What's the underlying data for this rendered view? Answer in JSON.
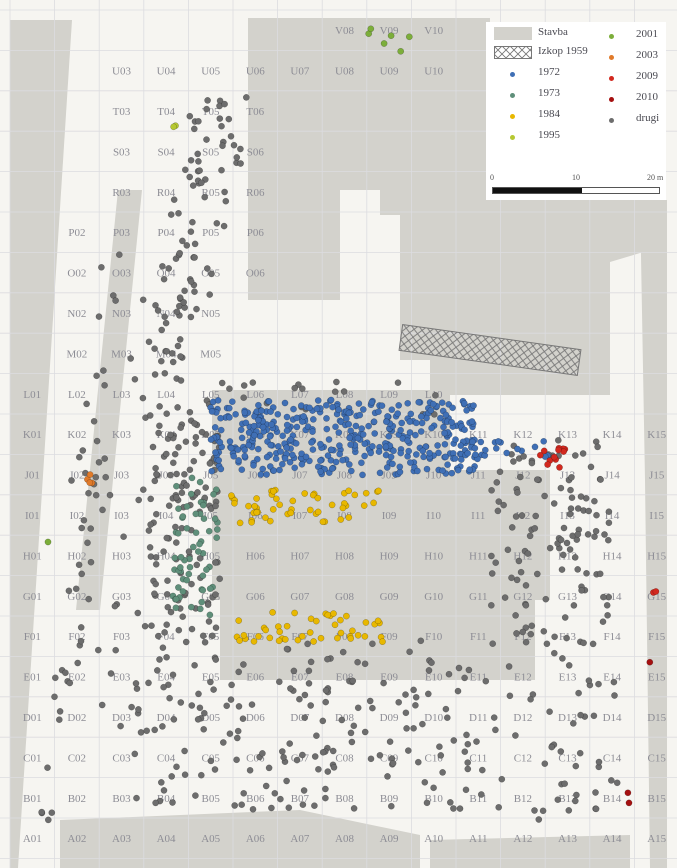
{
  "grid": {
    "rows": [
      "V",
      "U",
      "T",
      "S",
      "R",
      "P",
      "O",
      "N",
      "M",
      "L",
      "K",
      "J",
      "I",
      "H",
      "G",
      "F",
      "E",
      "D",
      "C",
      "B",
      "A"
    ],
    "cols": [
      "01",
      "02",
      "03",
      "04",
      "05",
      "06",
      "07",
      "08",
      "09",
      "10",
      "11",
      "12",
      "13",
      "14",
      "15"
    ],
    "labels": [
      [
        "V08",
        "V09",
        "V10"
      ],
      [
        "U03",
        "U04",
        "U05",
        "U06",
        "U07",
        "U08",
        "U09",
        "U10"
      ],
      [
        "T03",
        "T04",
        "T05",
        "T06"
      ],
      [
        "S03",
        "S04",
        "S05",
        "S06"
      ],
      [
        "R03",
        "R04",
        "R05",
        "R06"
      ],
      [
        "P02",
        "P03",
        "P04",
        "P05",
        "P06"
      ],
      [
        "O02",
        "O03",
        "O04",
        "O05",
        "O06"
      ],
      [
        "N02",
        "N03",
        "N04",
        "N05"
      ],
      [
        "M02",
        "M03",
        "M04",
        "M05"
      ],
      [
        "L01",
        "L02",
        "L03",
        "L04",
        "L05",
        "L06",
        "L07",
        "L08",
        "L09",
        "L10"
      ],
      [
        "K01",
        "K02",
        "K03",
        "K04",
        "K05",
        "K06",
        "K07",
        "K08",
        "K09",
        "K10",
        "K11",
        "K12",
        "K13",
        "K14",
        "K15"
      ],
      [
        "J01",
        "J02",
        "J03",
        "J04",
        "J05",
        "J06",
        "J07",
        "J08",
        "J09",
        "J10",
        "J11",
        "J12",
        "J13",
        "J14",
        "J15"
      ],
      [
        "I01",
        "I02",
        "I03",
        "I04",
        "I05",
        "I06",
        "I07",
        "I08",
        "I09",
        "I10",
        "I11",
        "I12",
        "I13",
        "I14",
        "I15"
      ],
      [
        "H01",
        "H02",
        "H03",
        "H04",
        "H05",
        "H06",
        "H07",
        "H08",
        "H09",
        "H10",
        "H11",
        "H12",
        "H13",
        "H14",
        "H15"
      ],
      [
        "G01",
        "G02",
        "G03",
        "G04",
        "G05",
        "G06",
        "G07",
        "G08",
        "G09",
        "G10",
        "G11",
        "G12",
        "G13",
        "G14",
        "G15"
      ],
      [
        "F01",
        "F02",
        "F03",
        "F04",
        "F05",
        "F06",
        "F07",
        "F08",
        "F09",
        "F10",
        "F11",
        "F12",
        "F13",
        "F14",
        "F15"
      ],
      [
        "E01",
        "E02",
        "E03",
        "E04",
        "E05",
        "E06",
        "E07",
        "E08",
        "E09",
        "E10",
        "E11",
        "E12",
        "E13",
        "E14",
        "E15"
      ],
      [
        "D01",
        "D02",
        "D03",
        "D04",
        "D05",
        "D06",
        "D07",
        "D08",
        "D09",
        "D10",
        "D11",
        "D12",
        "D13",
        "D14",
        "D15"
      ],
      [
        "C01",
        "C02",
        "C03",
        "C04",
        "C05",
        "C06",
        "C07",
        "C08",
        "C09",
        "C10",
        "C11",
        "C12",
        "C13",
        "C14",
        "C15"
      ],
      [
        "B01",
        "B02",
        "B03",
        "B04",
        "B05",
        "B06",
        "B07",
        "B08",
        "B09",
        "B10",
        "B11",
        "B12",
        "B13",
        "B14",
        "B15"
      ],
      [
        "A01",
        "A02",
        "A03",
        "A04",
        "A05",
        "A06",
        "A07",
        "A08",
        "A09",
        "A10",
        "A11",
        "A12",
        "A13",
        "A14",
        "A15"
      ]
    ]
  },
  "legend": {
    "items": [
      {
        "label": "Stavba",
        "kind": "swatch",
        "color": "#d3d2cc"
      },
      {
        "label": "Izkop 1959",
        "kind": "hatch",
        "color": "#ffffff"
      },
      {
        "label": "1972",
        "kind": "dot",
        "color": "#3f6fb5"
      },
      {
        "label": "1973",
        "kind": "dot",
        "color": "#5f8f7a"
      },
      {
        "label": "1984",
        "kind": "dot",
        "color": "#e8b800"
      },
      {
        "label": "1995",
        "kind": "dot",
        "color": "#b6c832"
      },
      {
        "label": "2001",
        "kind": "dot",
        "color": "#7cae3a"
      },
      {
        "label": "2003",
        "kind": "dot",
        "color": "#e07a2a"
      },
      {
        "label": "2009",
        "kind": "dot",
        "color": "#d2281e"
      },
      {
        "label": "2010",
        "kind": "dot",
        "color": "#a51010"
      },
      {
        "label": "drugi",
        "kind": "dot",
        "color": "#6d6d6d"
      }
    ],
    "scale": {
      "ticks": [
        "0",
        "10",
        "20 m"
      ]
    }
  },
  "colors": {
    "building": "#d3d2cc",
    "grid_line": "#dcdce0",
    "background": "#f6f5f1"
  },
  "clusters": [
    {
      "year": "drugi",
      "color": "#6d6d6d",
      "count": 700
    },
    {
      "year": "1972",
      "color": "#3f6fb5",
      "count": 420
    },
    {
      "year": "1973",
      "color": "#5f8f7a",
      "count": 60
    },
    {
      "year": "1984",
      "color": "#e8b800",
      "count": 95
    },
    {
      "year": "1995",
      "color": "#b6c832",
      "count": 2
    },
    {
      "year": "2001",
      "color": "#7cae3a",
      "count": 7
    },
    {
      "year": "2003",
      "color": "#e07a2a",
      "count": 4
    },
    {
      "year": "2009",
      "color": "#d2281e",
      "count": 14
    },
    {
      "year": "2010",
      "color": "#a51010",
      "count": 3
    }
  ]
}
